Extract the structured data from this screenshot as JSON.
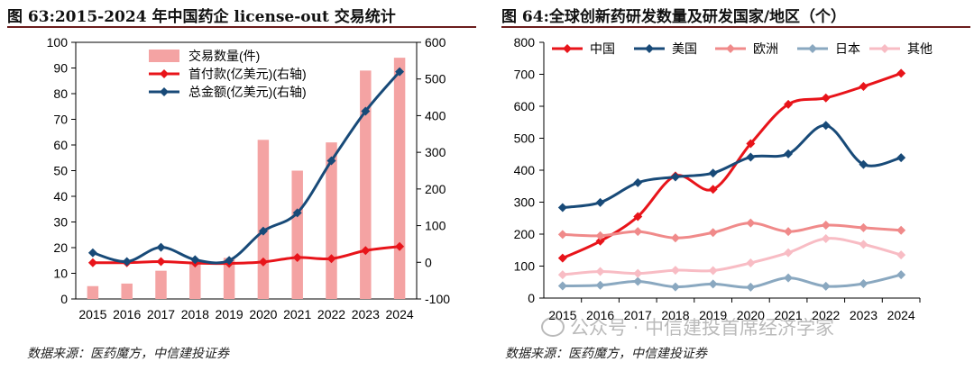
{
  "left": {
    "title": "图 63:2015-2024 年中国药企 license-out 交易统计",
    "source": "数据来源：医药魔方，中信建投证券"
  },
  "right": {
    "title": "图 64:全球创新药研发数量及研发国家/地区（个）",
    "source": "数据来源：医药魔方，中信建投证券"
  },
  "watermark": "公众号 · 中信建投首席经济学家",
  "colors": {
    "bar": "#f4a3a3",
    "red": "#e8141a",
    "navy": "#184a78",
    "pink": "#f08a8a",
    "grayblue": "#8aa8c0",
    "lightpink": "#f8bcc4",
    "rule": "#6b1d1d"
  },
  "chart_data": [
    {
      "type": "bar+line",
      "categories": [
        "2015",
        "2016",
        "2017",
        "2018",
        "2019",
        "2020",
        "2021",
        "2022",
        "2023",
        "2024"
      ],
      "ylim": [
        0,
        100
      ],
      "ylim_right": [
        -100,
        600
      ],
      "y_ticks": [
        "0",
        "10",
        "20",
        "30",
        "40",
        "50",
        "60",
        "70",
        "80",
        "90",
        "100"
      ],
      "y2_ticks": [
        "-100",
        "0",
        "100",
        "200",
        "300",
        "400",
        "500",
        "600"
      ],
      "legend_position": "top-center",
      "series": [
        {
          "name": "交易数量(件)",
          "type": "bar",
          "axis": "left",
          "values": [
            5,
            6,
            11,
            14,
            16,
            62,
            50,
            61,
            89,
            94
          ]
        },
        {
          "name": "首付款(亿美元)(右轴)",
          "type": "line",
          "axis": "right",
          "values": [
            -1,
            -1,
            2,
            -2,
            -3,
            1,
            13,
            10,
            32,
            43
          ]
        },
        {
          "name": "总金额(亿美元)(右轴)",
          "type": "line",
          "axis": "right",
          "values": [
            26,
            2,
            41,
            7,
            5,
            85,
            135,
            277,
            412,
            520
          ]
        }
      ]
    },
    {
      "type": "line",
      "categories": [
        "2015",
        "2016",
        "2017",
        "2018",
        "2019",
        "2020",
        "2021",
        "2022",
        "2023",
        "2024"
      ],
      "ylim": [
        0,
        800
      ],
      "y_ticks": [
        "0",
        "100",
        "200",
        "300",
        "400",
        "500",
        "600",
        "700",
        "800"
      ],
      "legend_position": "top",
      "series": [
        {
          "name": "中国",
          "values": [
            125,
            178,
            255,
            382,
            340,
            483,
            606,
            626,
            662,
            703
          ]
        },
        {
          "name": "美国",
          "values": [
            283,
            299,
            361,
            379,
            391,
            441,
            451,
            540,
            418,
            439
          ]
        },
        {
          "name": "欧洲",
          "values": [
            199,
            195,
            208,
            188,
            205,
            235,
            208,
            228,
            220,
            212
          ]
        },
        {
          "name": "日本",
          "values": [
            38,
            40,
            52,
            35,
            44,
            34,
            63,
            37,
            45,
            73
          ]
        },
        {
          "name": "其他",
          "values": [
            73,
            83,
            77,
            87,
            86,
            110,
            142,
            186,
            168,
            135
          ]
        }
      ]
    }
  ]
}
